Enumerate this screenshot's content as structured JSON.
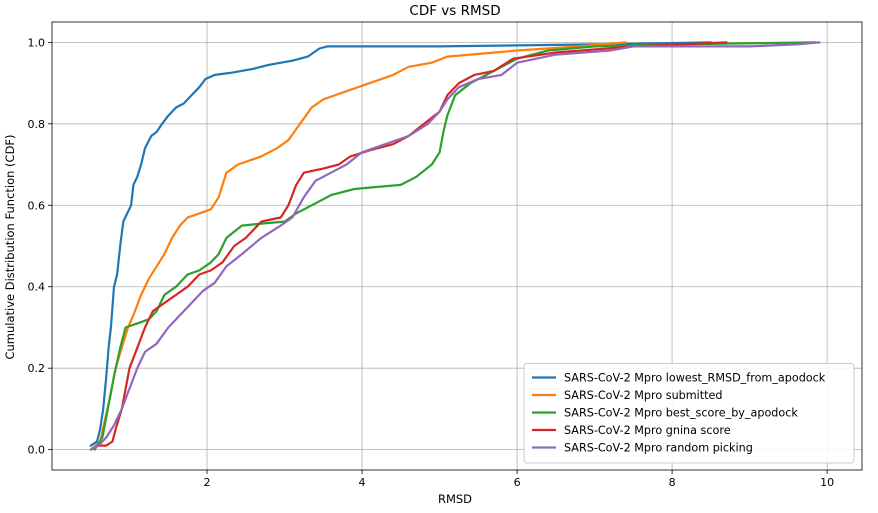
{
  "chart_data": {
    "type": "line",
    "title": "CDF vs RMSD",
    "xlabel": "RMSD",
    "ylabel": "Cumulative Distribution Function (CDF)",
    "xlim": [
      0.0,
      10.45
    ],
    "ylim": [
      -0.05,
      1.05
    ],
    "xticks": [
      2,
      4,
      6,
      8,
      10
    ],
    "xtick_labels": [
      "2",
      "4",
      "6",
      "8",
      "10"
    ],
    "yticks": [
      0.0,
      0.2,
      0.4,
      0.6,
      0.8,
      1.0
    ],
    "ytick_labels": [
      "0.0",
      "0.2",
      "0.4",
      "0.6",
      "0.8",
      "1.0"
    ],
    "grid": true,
    "legend_position": "lower-right",
    "series": [
      {
        "name": "SARS-CoV-2 Mpro lowest_RMSD_from_apodock",
        "color": "#1f77b4",
        "points": [
          [
            0.5,
            0.01
          ],
          [
            0.58,
            0.02
          ],
          [
            0.62,
            0.05
          ],
          [
            0.66,
            0.1
          ],
          [
            0.7,
            0.18
          ],
          [
            0.73,
            0.25
          ],
          [
            0.76,
            0.3
          ],
          [
            0.8,
            0.4
          ],
          [
            0.84,
            0.43
          ],
          [
            0.88,
            0.5
          ],
          [
            0.92,
            0.56
          ],
          [
            0.97,
            0.58
          ],
          [
            1.02,
            0.6
          ],
          [
            1.05,
            0.65
          ],
          [
            1.1,
            0.67
          ],
          [
            1.15,
            0.7
          ],
          [
            1.2,
            0.74
          ],
          [
            1.28,
            0.77
          ],
          [
            1.35,
            0.78
          ],
          [
            1.42,
            0.8
          ],
          [
            1.5,
            0.82
          ],
          [
            1.6,
            0.84
          ],
          [
            1.7,
            0.85
          ],
          [
            1.8,
            0.87
          ],
          [
            1.9,
            0.89
          ],
          [
            1.98,
            0.91
          ],
          [
            2.1,
            0.92
          ],
          [
            2.3,
            0.925
          ],
          [
            2.6,
            0.935
          ],
          [
            2.8,
            0.945
          ],
          [
            3.1,
            0.955
          ],
          [
            3.3,
            0.965
          ],
          [
            3.45,
            0.985
          ],
          [
            3.55,
            0.99
          ],
          [
            5.0,
            0.99
          ],
          [
            7.0,
            0.995
          ],
          [
            8.5,
            1.0
          ]
        ]
      },
      {
        "name": "SARS-CoV-2 Mpro submitted",
        "color": "#ff7f0e",
        "points": [
          [
            0.5,
            0.0
          ],
          [
            0.62,
            0.02
          ],
          [
            0.68,
            0.07
          ],
          [
            0.75,
            0.13
          ],
          [
            0.82,
            0.2
          ],
          [
            0.9,
            0.25
          ],
          [
            0.98,
            0.3
          ],
          [
            1.05,
            0.33
          ],
          [
            1.15,
            0.38
          ],
          [
            1.25,
            0.42
          ],
          [
            1.35,
            0.45
          ],
          [
            1.45,
            0.48
          ],
          [
            1.55,
            0.52
          ],
          [
            1.65,
            0.55
          ],
          [
            1.75,
            0.57
          ],
          [
            1.9,
            0.58
          ],
          [
            2.05,
            0.59
          ],
          [
            2.15,
            0.62
          ],
          [
            2.25,
            0.68
          ],
          [
            2.4,
            0.7
          ],
          [
            2.7,
            0.72
          ],
          [
            2.9,
            0.74
          ],
          [
            3.05,
            0.76
          ],
          [
            3.2,
            0.8
          ],
          [
            3.35,
            0.84
          ],
          [
            3.5,
            0.86
          ],
          [
            3.8,
            0.88
          ],
          [
            4.1,
            0.9
          ],
          [
            4.4,
            0.92
          ],
          [
            4.6,
            0.94
          ],
          [
            4.9,
            0.95
          ],
          [
            5.1,
            0.965
          ],
          [
            5.4,
            0.97
          ],
          [
            6.0,
            0.98
          ],
          [
            6.8,
            0.99
          ],
          [
            7.4,
            1.0
          ]
        ]
      },
      {
        "name": "SARS-CoV-2 Mpro best_score_by_apodock",
        "color": "#2ca02c",
        "points": [
          [
            0.55,
            0.0
          ],
          [
            0.65,
            0.03
          ],
          [
            0.72,
            0.1
          ],
          [
            0.8,
            0.18
          ],
          [
            0.88,
            0.25
          ],
          [
            0.95,
            0.3
          ],
          [
            1.1,
            0.31
          ],
          [
            1.25,
            0.32
          ],
          [
            1.35,
            0.34
          ],
          [
            1.45,
            0.38
          ],
          [
            1.6,
            0.4
          ],
          [
            1.75,
            0.43
          ],
          [
            1.9,
            0.44
          ],
          [
            2.05,
            0.46
          ],
          [
            2.15,
            0.48
          ],
          [
            2.25,
            0.52
          ],
          [
            2.45,
            0.55
          ],
          [
            2.7,
            0.555
          ],
          [
            3.0,
            0.56
          ],
          [
            3.15,
            0.58
          ],
          [
            3.35,
            0.6
          ],
          [
            3.6,
            0.625
          ],
          [
            3.9,
            0.64
          ],
          [
            4.2,
            0.645
          ],
          [
            4.5,
            0.65
          ],
          [
            4.7,
            0.67
          ],
          [
            4.9,
            0.7
          ],
          [
            5.0,
            0.73
          ],
          [
            5.05,
            0.78
          ],
          [
            5.1,
            0.82
          ],
          [
            5.2,
            0.87
          ],
          [
            5.4,
            0.9
          ],
          [
            5.7,
            0.93
          ],
          [
            6.0,
            0.96
          ],
          [
            6.4,
            0.98
          ],
          [
            7.0,
            0.99
          ],
          [
            8.0,
            0.995
          ],
          [
            9.85,
            1.0
          ]
        ]
      },
      {
        "name": "SARS-CoV-2 Mpro gnina score",
        "color": "#d62728",
        "points": [
          [
            0.6,
            0.01
          ],
          [
            0.7,
            0.01
          ],
          [
            0.78,
            0.02
          ],
          [
            0.82,
            0.05
          ],
          [
            0.9,
            0.1
          ],
          [
            1.0,
            0.2
          ],
          [
            1.1,
            0.25
          ],
          [
            1.2,
            0.3
          ],
          [
            1.3,
            0.34
          ],
          [
            1.45,
            0.36
          ],
          [
            1.6,
            0.38
          ],
          [
            1.75,
            0.4
          ],
          [
            1.9,
            0.43
          ],
          [
            2.05,
            0.44
          ],
          [
            2.2,
            0.46
          ],
          [
            2.35,
            0.5
          ],
          [
            2.5,
            0.52
          ],
          [
            2.7,
            0.56
          ],
          [
            2.95,
            0.57
          ],
          [
            3.05,
            0.6
          ],
          [
            3.15,
            0.65
          ],
          [
            3.25,
            0.68
          ],
          [
            3.5,
            0.69
          ],
          [
            3.7,
            0.7
          ],
          [
            3.85,
            0.72
          ],
          [
            4.1,
            0.735
          ],
          [
            4.4,
            0.75
          ],
          [
            4.6,
            0.77
          ],
          [
            4.8,
            0.8
          ],
          [
            5.0,
            0.83
          ],
          [
            5.1,
            0.87
          ],
          [
            5.25,
            0.9
          ],
          [
            5.45,
            0.92
          ],
          [
            5.7,
            0.93
          ],
          [
            5.95,
            0.96
          ],
          [
            6.5,
            0.975
          ],
          [
            7.5,
            0.99
          ],
          [
            8.7,
            1.0
          ]
        ]
      },
      {
        "name": "SARS-CoV-2 Mpro random picking",
        "color": "#9467bd",
        "points": [
          [
            0.5,
            0.0
          ],
          [
            0.6,
            0.01
          ],
          [
            0.7,
            0.03
          ],
          [
            0.8,
            0.06
          ],
          [
            0.9,
            0.1
          ],
          [
            1.0,
            0.15
          ],
          [
            1.1,
            0.2
          ],
          [
            1.2,
            0.24
          ],
          [
            1.35,
            0.26
          ],
          [
            1.5,
            0.3
          ],
          [
            1.65,
            0.33
          ],
          [
            1.8,
            0.36
          ],
          [
            1.95,
            0.39
          ],
          [
            2.1,
            0.41
          ],
          [
            2.25,
            0.45
          ],
          [
            2.45,
            0.48
          ],
          [
            2.7,
            0.52
          ],
          [
            2.95,
            0.55
          ],
          [
            3.1,
            0.57
          ],
          [
            3.25,
            0.62
          ],
          [
            3.4,
            0.66
          ],
          [
            3.6,
            0.68
          ],
          [
            3.8,
            0.7
          ],
          [
            4.0,
            0.73
          ],
          [
            4.3,
            0.75
          ],
          [
            4.6,
            0.77
          ],
          [
            4.85,
            0.8
          ],
          [
            5.0,
            0.83
          ],
          [
            5.1,
            0.86
          ],
          [
            5.25,
            0.89
          ],
          [
            5.5,
            0.91
          ],
          [
            5.8,
            0.92
          ],
          [
            6.0,
            0.95
          ],
          [
            6.5,
            0.97
          ],
          [
            7.2,
            0.98
          ],
          [
            7.5,
            0.99
          ],
          [
            8.5,
            0.99
          ],
          [
            9.0,
            0.99
          ],
          [
            9.6,
            0.995
          ],
          [
            9.9,
            1.0
          ]
        ]
      }
    ]
  }
}
